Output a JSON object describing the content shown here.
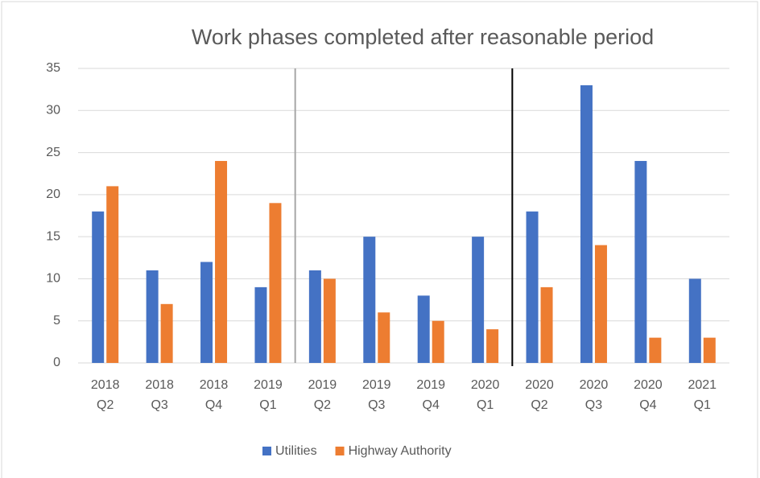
{
  "chart_data": {
    "type": "bar",
    "title": "Work phases completed after reasonable period",
    "categories": [
      "2018 Q2",
      "2018 Q3",
      "2018 Q4",
      "2019 Q1",
      "2019 Q2",
      "2019 Q3",
      "2019 Q4",
      "2020 Q1",
      "2020 Q2",
      "2020 Q3",
      "2020 Q4",
      "2021 Q1"
    ],
    "series": [
      {
        "name": "Utilities",
        "color": "#4472c4",
        "values": [
          18,
          11,
          12,
          9,
          11,
          15,
          8,
          15,
          18,
          33,
          24,
          10
        ]
      },
      {
        "name": "Highway Authority",
        "color": "#ed7d31",
        "values": [
          21,
          7,
          24,
          19,
          10,
          6,
          5,
          4,
          9,
          14,
          3,
          3
        ]
      }
    ],
    "ylim": [
      0,
      35
    ],
    "yticks": [
      0,
      5,
      10,
      15,
      20,
      25,
      30,
      35
    ],
    "grid": true,
    "legend": "bottom"
  }
}
